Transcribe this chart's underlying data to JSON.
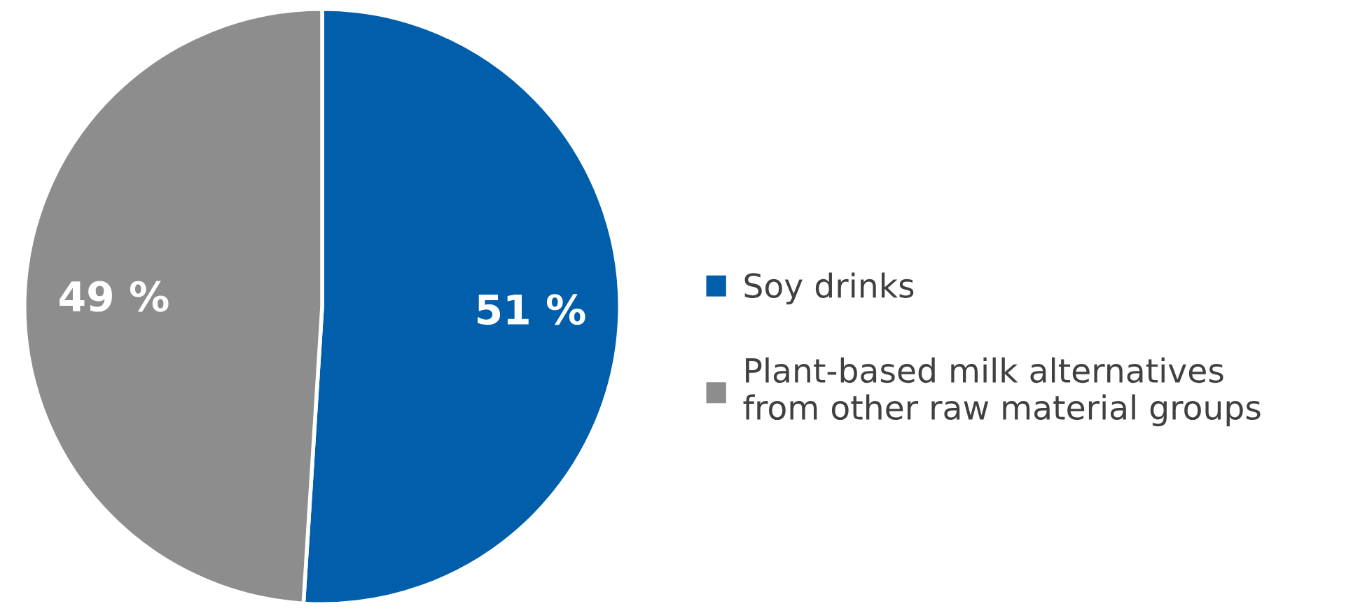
{
  "chart_data": {
    "type": "pie",
    "categories": [
      "Soy drinks",
      "Plant-based milk alternatives\nfrom other raw material groups"
    ],
    "values": [
      51,
      49
    ],
    "colors": [
      "#005eab",
      "#8c8d8c"
    ],
    "value_labels": [
      "51 %",
      "49 %"
    ],
    "legend": "right"
  }
}
